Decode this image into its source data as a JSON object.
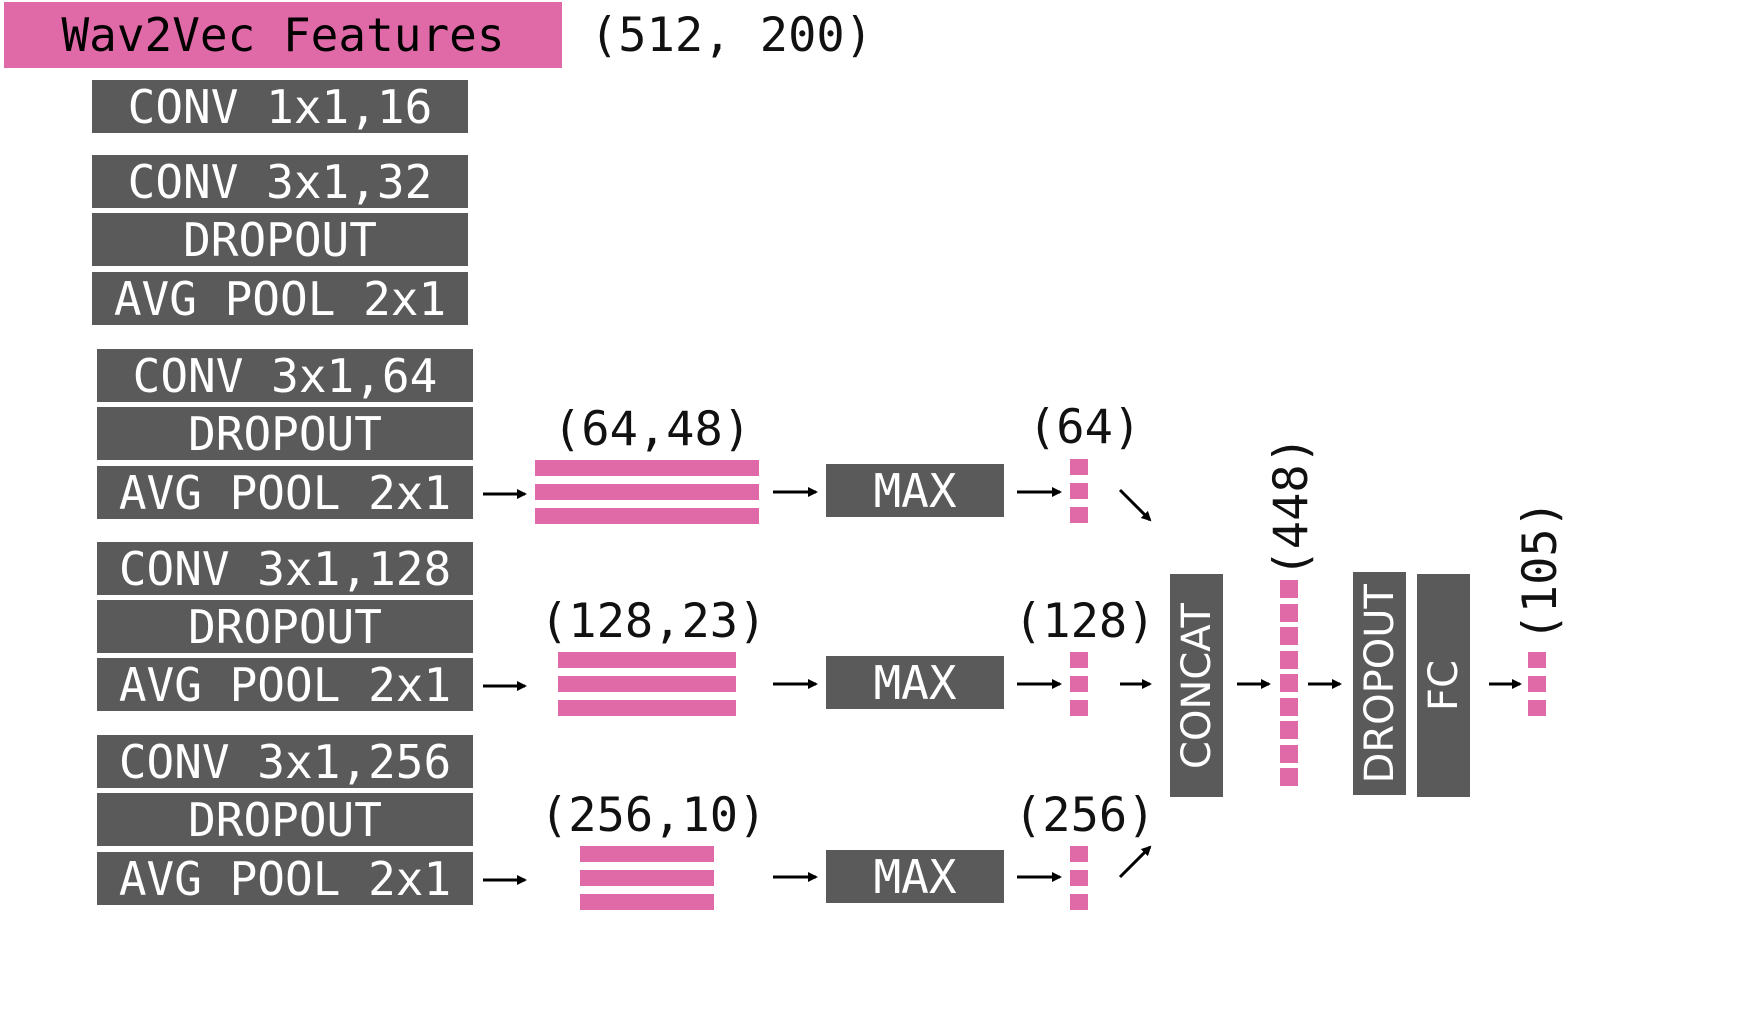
{
  "input": {
    "label": "Wav2Vec Features",
    "shape": "(512, 200)"
  },
  "stem": [
    {
      "blocks": [
        "CONV 1x1,16"
      ]
    },
    {
      "blocks": [
        "CONV 3x1,32",
        "DROPOUT",
        "AVG POOL 2x1"
      ]
    }
  ],
  "branches": [
    {
      "blocks": [
        "CONV 3x1,64",
        "DROPOUT",
        "AVG POOL 2x1"
      ],
      "feature_shape": "(64,48)",
      "pool_label": "MAX",
      "vector_shape": "(64)"
    },
    {
      "blocks": [
        "CONV 3x1,128",
        "DROPOUT",
        "AVG POOL 2x1"
      ],
      "feature_shape": "(128,23)",
      "pool_label": "MAX",
      "vector_shape": "(128)"
    },
    {
      "blocks": [
        "CONV 3x1,256",
        "DROPOUT",
        "AVG POOL 2x1"
      ],
      "feature_shape": "(256,10)",
      "pool_label": "MAX",
      "vector_shape": "(256)"
    }
  ],
  "head": {
    "concat_label": "CONCAT",
    "concat_shape": "(448)",
    "dropout_label": "DROPOUT",
    "fc_label": "FC",
    "output_shape": "(105)"
  },
  "colors": {
    "block": "#5a5a5a",
    "feature": "#e06aa8",
    "text_on_block": "#ffffff"
  }
}
